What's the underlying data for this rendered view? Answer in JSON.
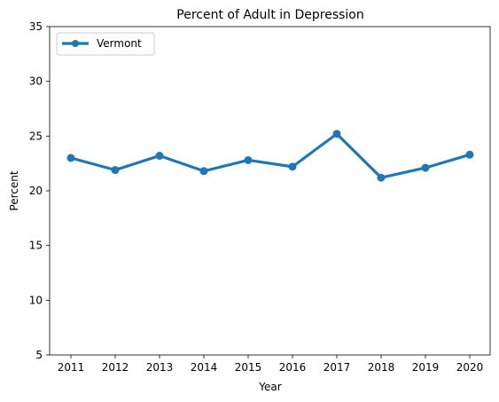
{
  "chart_data": {
    "type": "line",
    "title": "Percent of Adult in Depression",
    "xlabel": "Year",
    "ylabel": "Percent",
    "x": [
      "2011",
      "2012",
      "2013",
      "2014",
      "2015",
      "2016",
      "2017",
      "2018",
      "2019",
      "2020"
    ],
    "ylim": [
      5,
      35
    ],
    "yticks": [
      5,
      10,
      15,
      20,
      25,
      30,
      35
    ],
    "grid": false,
    "legend_position": "top-left",
    "series": [
      {
        "name": "Vermont",
        "color": "#1f77b4",
        "marker": "circle",
        "values": [
          23.0,
          21.9,
          23.2,
          21.8,
          22.8,
          22.2,
          25.2,
          21.2,
          22.1,
          23.3
        ]
      }
    ]
  }
}
